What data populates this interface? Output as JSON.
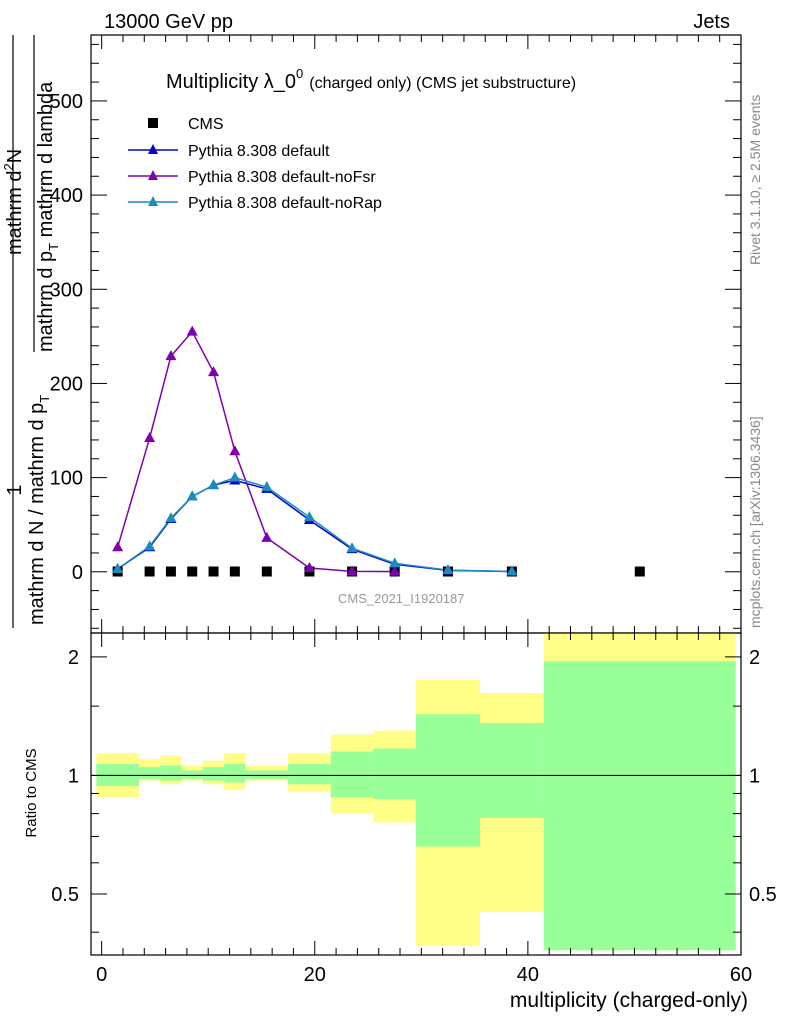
{
  "header": {
    "energy_label": "13000 GeV pp",
    "process_label": "Jets",
    "side_version": "Rivet 3.1.10, ≥ 2.5M events",
    "side_site": "mcplots.cern.ch [arXiv:1306.3436]"
  },
  "chart_data": [
    {
      "type": "scatter",
      "title": "Multiplicity λ_0⁰ (charged only) (CMS jet substructure)",
      "title_main": "Multiplicity λ_0",
      "title_sup": "0",
      "title_suffix": "(charged only) (CMS jet substructure)",
      "ylabel_numerator": "mathrm d²N",
      "ylabel_numerator_lines": [
        "mathrm d",
        "N"
      ],
      "ylabel_numerator_sup": "2",
      "ylabel_denominator": "mathrm d p_T mathrm d lambda",
      "ylabel_denominator_parts": [
        "mathrm d p",
        "T",
        " mathrm d lambda"
      ],
      "ylabel_full_denominator": "mathrm d N / mathrm d p_T",
      "ylabel_full_denominator_parts": [
        "mathrm d N / mathrm d p",
        "T"
      ],
      "ylabel_one": "1",
      "analysis_tag": "CMS_2021_I1920187",
      "xlim": [
        -1,
        60
      ],
      "ylim": [
        -65,
        570
      ],
      "yticks": [
        0,
        100,
        200,
        300,
        400,
        500
      ],
      "legend_position": "top-left",
      "series": [
        {
          "name": "CMS",
          "marker": "square",
          "color": "#000000",
          "x": [
            1.5,
            4.5,
            6.5,
            8.5,
            10.5,
            12.5,
            15.5,
            19.5,
            23.5,
            27.5,
            32.5,
            38.5,
            50.5
          ],
          "values": [
            0.3,
            0.3,
            0.3,
            0.3,
            0.3,
            0.3,
            0.3,
            0.3,
            0.3,
            0.3,
            0.3,
            0.3,
            0.3
          ]
        },
        {
          "name": "Pythia 8.308 default",
          "marker": "triangle",
          "color": "#0000cc",
          "x": [
            1.5,
            4.5,
            6.5,
            8.5,
            10.5,
            12.5,
            15.5,
            19.5,
            23.5,
            27.5,
            32.5,
            38.5
          ],
          "values": [
            3,
            26,
            56,
            80,
            92,
            97,
            88,
            55,
            24,
            8,
            1.5,
            0.3
          ]
        },
        {
          "name": "Pythia 8.308 default-noFsr",
          "marker": "triangle",
          "color": "#8000b0",
          "x": [
            1.5,
            4.5,
            6.5,
            8.5,
            10.5,
            12.5,
            15.5,
            19.5,
            23.5,
            27.5
          ],
          "values": [
            26,
            142,
            229,
            255,
            212,
            128,
            36,
            4,
            0.5,
            0.2
          ]
        },
        {
          "name": "Pythia 8.308 default-noRap",
          "marker": "triangle",
          "color": "#1a8cc0",
          "x": [
            1.5,
            4.5,
            6.5,
            8.5,
            10.5,
            12.5,
            15.5,
            19.5,
            23.5,
            27.5,
            32.5,
            38.5
          ],
          "values": [
            3,
            27,
            57,
            80,
            92,
            100,
            90,
            58,
            25,
            9,
            1.8,
            0.4
          ]
        }
      ]
    },
    {
      "type": "area",
      "ylabel": "Ratio to CMS",
      "xlabel": "multiplicity (charged-only)",
      "xlim": [
        -1,
        60
      ],
      "ylim": [
        0.35,
        2.3
      ],
      "xticks": [
        0,
        20,
        40,
        60
      ],
      "yticks": [
        0.5,
        1,
        2
      ],
      "reference_line": 1,
      "bin_edges": [
        -0.5,
        3.5,
        5.5,
        7.5,
        9.5,
        11.5,
        13.5,
        17.5,
        21.5,
        25.5,
        29.5,
        35.5,
        41.5,
        59.5
      ],
      "bands": [
        {
          "name": "total uncertainty",
          "color": "#ffff88",
          "lower": [
            0.88,
            0.97,
            0.95,
            0.97,
            0.95,
            0.92,
            0.97,
            0.91,
            0.8,
            0.76,
            0.37,
            0.45,
            0.36
          ],
          "upper": [
            1.14,
            1.1,
            1.12,
            1.06,
            1.09,
            1.14,
            1.06,
            1.14,
            1.27,
            1.3,
            1.75,
            1.62,
            2.3
          ]
        },
        {
          "name": "statistical uncertainty",
          "color": "#99ff99",
          "lower": [
            0.94,
            0.98,
            0.97,
            0.98,
            0.97,
            0.96,
            0.98,
            0.95,
            0.88,
            0.87,
            0.66,
            0.78,
            0.36
          ]
        }
      ]
    }
  ]
}
